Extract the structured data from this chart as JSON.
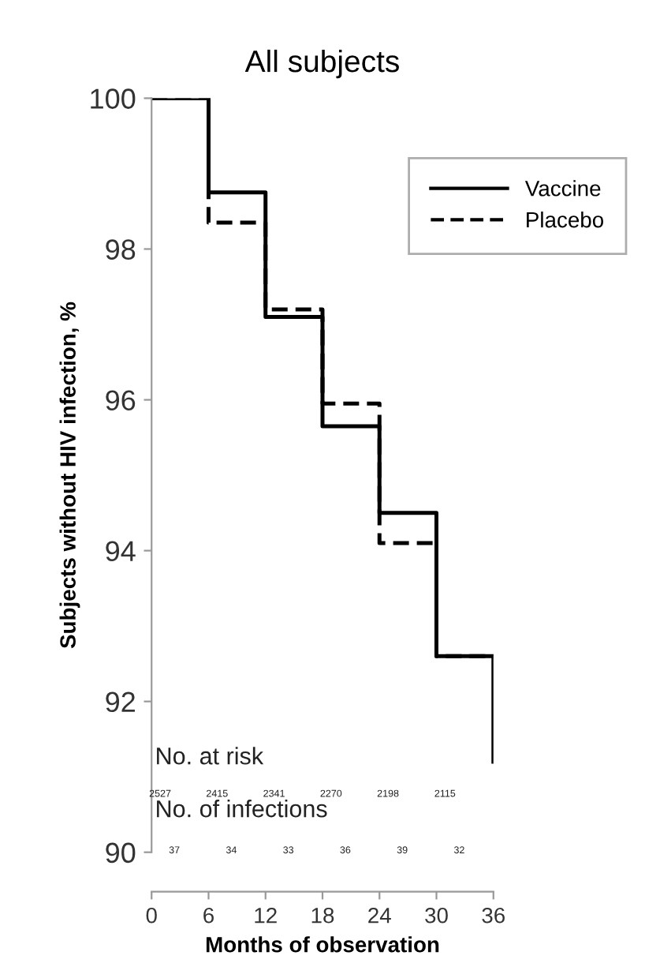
{
  "chart_data": {
    "type": "step",
    "title": "All subjects",
    "xlabel": "Months of observation",
    "ylabel": "Subjects without HIV infection, %",
    "x": [
      0,
      6,
      12,
      18,
      24,
      30,
      36
    ],
    "series": [
      {
        "name": "Vaccine",
        "color": "#000000",
        "line_style": "solid",
        "values": [
          100,
          98.75,
          97.1,
          95.65,
          94.5,
          92.6,
          91.2
        ]
      },
      {
        "name": "Placebo",
        "color": "#000000",
        "line_style": "dashed",
        "values": [
          100,
          98.35,
          97.2,
          95.95,
          94.1,
          92.6,
          92.6
        ]
      }
    ],
    "xlim": [
      0,
      36
    ],
    "xticks": [
      0,
      6,
      12,
      18,
      24,
      30,
      36
    ],
    "ylim": [
      90,
      100
    ],
    "yticks": [
      90,
      92,
      94,
      96,
      98,
      100
    ],
    "grid": false,
    "legend": "top right",
    "marker": "none",
    "annotations": [
      "No. at risk",
      "2527",
      "2415",
      "2341",
      "2270",
      "2198",
      "2115",
      "No. of infections",
      "37",
      "34",
      "33",
      "36",
      "39",
      "32"
    ]
  }
}
